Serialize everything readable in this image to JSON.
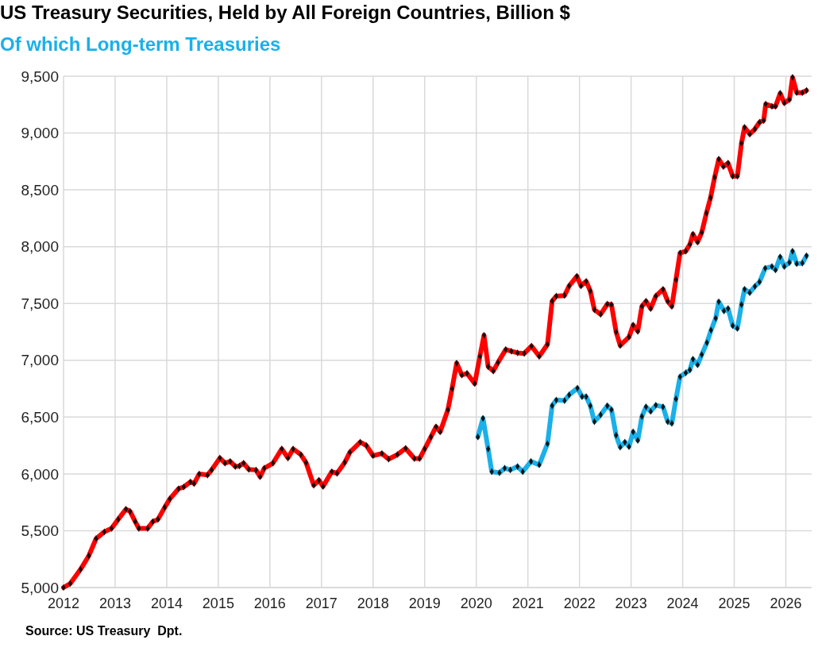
{
  "chart_data": {
    "type": "line",
    "title": "US Treasury Securities, Held by All Foreign Countries, Billion $",
    "annotations": [
      "Source: US Treasury  Dpt."
    ],
    "xlim": [
      2012,
      2026.5
    ],
    "xticks": [
      2012,
      2013,
      2014,
      2015,
      2016,
      2017,
      2018,
      2019,
      2020,
      2021,
      2022,
      2023,
      2024,
      2025,
      2026
    ],
    "ylim": [
      5000,
      9500
    ],
    "yticks": [
      {
        "value": 5000,
        "label": "5,000"
      },
      {
        "value": 5500,
        "label": "5,500"
      },
      {
        "value": 6000,
        "label": "6,000"
      },
      {
        "value": 6500,
        "label": "6,500"
      },
      {
        "value": 7000,
        "label": "7,000"
      },
      {
        "value": 7500,
        "label": "7,500"
      },
      {
        "value": 8000,
        "label": "8,000"
      },
      {
        "value": 8500,
        "label": "8,500"
      },
      {
        "value": 9000,
        "label": "9,000"
      },
      {
        "value": 9500,
        "label": "9,500"
      }
    ],
    "grid": true,
    "legend": "top left",
    "marker": "diamond",
    "line_style": "solid",
    "series": [
      {
        "color": "#ff0000",
        "x": [
          2012.0,
          2012.13,
          2012.33,
          2012.49,
          2012.63,
          2012.79,
          2012.93,
          2013.06,
          2013.21,
          2013.29,
          2013.39,
          2013.46,
          2013.63,
          2013.73,
          2013.83,
          2013.96,
          2014.06,
          2014.23,
          2014.33,
          2014.46,
          2014.53,
          2014.63,
          2014.79,
          2014.87,
          2015.03,
          2015.13,
          2015.23,
          2015.33,
          2015.41,
          2015.49,
          2015.59,
          2015.73,
          2015.81,
          2015.89,
          2016.06,
          2016.23,
          2016.35,
          2016.45,
          2016.6,
          2016.7,
          2016.85,
          2016.95,
          2017.03,
          2017.2,
          2017.3,
          2017.45,
          2017.55,
          2017.75,
          2017.87,
          2018.0,
          2018.17,
          2018.3,
          2018.47,
          2018.63,
          2018.8,
          2018.9,
          2019.0,
          2019.12,
          2019.22,
          2019.3,
          2019.45,
          2019.53,
          2019.62,
          2019.72,
          2019.82,
          2019.97,
          2020.07,
          2020.15,
          2020.23,
          2020.33,
          2020.42,
          2020.57,
          2020.68,
          2020.8,
          2020.93,
          2021.07,
          2021.22,
          2021.38,
          2021.47,
          2021.55,
          2021.71,
          2021.8,
          2021.95,
          2022.03,
          2022.13,
          2022.21,
          2022.29,
          2022.41,
          2022.54,
          2022.62,
          2022.71,
          2022.79,
          2022.96,
          2023.04,
          2023.13,
          2023.21,
          2023.29,
          2023.38,
          2023.48,
          2023.62,
          2023.71,
          2023.79,
          2023.87,
          2023.95,
          2024.06,
          2024.14,
          2024.2,
          2024.29,
          2024.37,
          2024.46,
          2024.54,
          2024.62,
          2024.7,
          2024.79,
          2024.88,
          2024.97,
          2025.06,
          2025.14,
          2025.2,
          2025.3,
          2025.4,
          2025.49,
          2025.57,
          2025.61,
          2025.73,
          2025.8,
          2025.89,
          2025.97,
          2026.07,
          2026.13,
          2026.21,
          2026.32,
          2026.4
        ],
        "values": [
          5000,
          5035,
          5160,
          5280,
          5430,
          5490,
          5520,
          5600,
          5690,
          5670,
          5580,
          5520,
          5520,
          5580,
          5600,
          5705,
          5780,
          5870,
          5885,
          5930,
          5915,
          6000,
          5990,
          6035,
          6140,
          6095,
          6110,
          6065,
          6070,
          6095,
          6040,
          6035,
          5975,
          6050,
          6095,
          6220,
          6140,
          6220,
          6170,
          6100,
          5900,
          5945,
          5890,
          6020,
          6005,
          6100,
          6190,
          6280,
          6250,
          6160,
          6180,
          6130,
          6170,
          6225,
          6135,
          6135,
          6220,
          6325,
          6415,
          6370,
          6565,
          6750,
          6975,
          6870,
          6885,
          6795,
          7035,
          7220,
          6945,
          6905,
          6980,
          7095,
          7080,
          7065,
          7060,
          7125,
          7035,
          7140,
          7520,
          7565,
          7570,
          7655,
          7740,
          7655,
          7695,
          7610,
          7445,
          7405,
          7495,
          7490,
          7250,
          7130,
          7205,
          7310,
          7255,
          7475,
          7520,
          7455,
          7565,
          7625,
          7520,
          7475,
          7710,
          7945,
          7960,
          8020,
          8110,
          8040,
          8125,
          8295,
          8430,
          8610,
          8770,
          8705,
          8735,
          8620,
          8620,
          8910,
          9050,
          8990,
          9035,
          9095,
          9110,
          9255,
          9235,
          9235,
          9350,
          9265,
          9295,
          9490,
          9355,
          9355,
          9375
        ]
      },
      {
        "name": "Of which Long-term Treasuries",
        "color": "#1ab0ea",
        "x": [
          2020.03,
          2020.13,
          2020.23,
          2020.3,
          2020.45,
          2020.55,
          2020.66,
          2020.8,
          2020.9,
          2021.06,
          2021.22,
          2021.38,
          2021.47,
          2021.55,
          2021.71,
          2021.8,
          2021.96,
          2022.05,
          2022.13,
          2022.21,
          2022.29,
          2022.41,
          2022.54,
          2022.62,
          2022.71,
          2022.79,
          2022.88,
          2022.96,
          2023.04,
          2023.13,
          2023.21,
          2023.29,
          2023.38,
          2023.48,
          2023.62,
          2023.71,
          2023.79,
          2023.87,
          2023.95,
          2024.06,
          2024.14,
          2024.2,
          2024.29,
          2024.37,
          2024.47,
          2024.55,
          2024.64,
          2024.7,
          2024.8,
          2024.88,
          2024.97,
          2025.06,
          2025.14,
          2025.2,
          2025.3,
          2025.4,
          2025.49,
          2025.6,
          2025.73,
          2025.8,
          2025.89,
          2025.97,
          2026.07,
          2026.13,
          2026.21,
          2026.32,
          2026.4
        ],
        "values": [
          6325,
          6490,
          6220,
          6020,
          6010,
          6050,
          6035,
          6065,
          6020,
          6110,
          6080,
          6265,
          6600,
          6650,
          6645,
          6695,
          6755,
          6680,
          6680,
          6600,
          6460,
          6520,
          6600,
          6565,
          6340,
          6235,
          6280,
          6240,
          6370,
          6295,
          6505,
          6590,
          6550,
          6605,
          6590,
          6460,
          6445,
          6660,
          6855,
          6890,
          6915,
          7010,
          6960,
          7050,
          7155,
          7265,
          7370,
          7515,
          7435,
          7455,
          7305,
          7280,
          7490,
          7625,
          7595,
          7650,
          7690,
          7810,
          7825,
          7795,
          7910,
          7825,
          7860,
          7960,
          7850,
          7855,
          7920
        ]
      }
    ]
  }
}
